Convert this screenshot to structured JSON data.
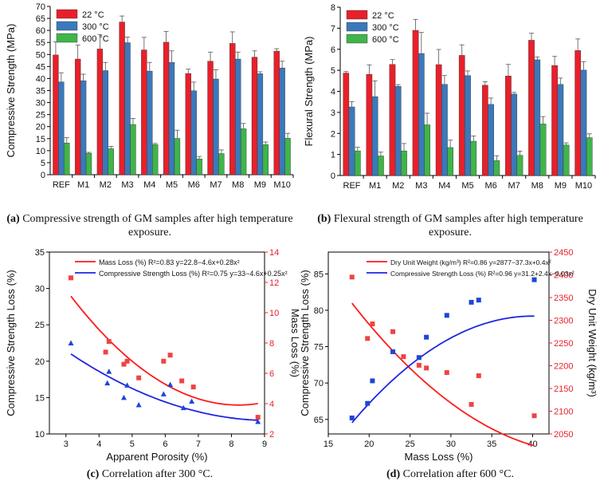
{
  "colors": {
    "red": "#e8202a",
    "blue": "#3a79bb",
    "green": "#3fb54a",
    "line_red": "#ff1a1a",
    "line_blue": "#1f25e0",
    "scatter_red": "#ee4444",
    "scatter_blue": "#1f45d8"
  },
  "captions": {
    "a_tag": "(a)",
    "a_text": " Compressive strength of GM samples after high temperature exposure.",
    "b_tag": "(b)",
    "b_text": " Flexural strength of GM samples after high temperature exposure.",
    "c_tag": "(c)",
    "c_text": " Correlation after 300 °C.",
    "d_tag": "(d)",
    "d_text": " Correlation after 600 °C."
  },
  "chart_data": [
    {
      "id": "a",
      "type": "bar",
      "categories": [
        "REF",
        "M1",
        "M2",
        "M3",
        "M4",
        "M5",
        "M6",
        "M7",
        "M8",
        "M9",
        "M10"
      ],
      "series": [
        {
          "name": "22 °C",
          "values": [
            49.8,
            48.1,
            52.3,
            63.5,
            51.9,
            55.1,
            42.1,
            47.2,
            54.6,
            48.9,
            51.4
          ],
          "errors": [
            5.5,
            5.8,
            6.0,
            2.5,
            5.2,
            4.5,
            1.8,
            3.8,
            4.8,
            2.6,
            1.0
          ]
        },
        {
          "name": "300 °C",
          "values": [
            38.6,
            39.1,
            43.3,
            54.9,
            43.1,
            46.7,
            34.9,
            39.8,
            48.1,
            42.0,
            44.4
          ],
          "errors": [
            3.8,
            2.7,
            3.4,
            2.3,
            3.6,
            4.8,
            3.6,
            3.8,
            2.9,
            0.8,
            2.8
          ]
        },
        {
          "name": "600 °C",
          "values": [
            13.2,
            8.9,
            10.8,
            20.9,
            12.5,
            15.1,
            6.6,
            8.8,
            19.1,
            12.5,
            15.2
          ],
          "errors": [
            2.2,
            0.4,
            1.0,
            2.5,
            0.5,
            3.4,
            1.0,
            1.5,
            2.2,
            1.1,
            2.0
          ]
        }
      ],
      "title": "",
      "xlabel": "",
      "ylabel": "Compressive Strength (MPa)",
      "ylim": [
        0,
        70
      ],
      "yticks": [
        0,
        5,
        10,
        15,
        20,
        25,
        30,
        35,
        40,
        45,
        50,
        55,
        60,
        65,
        70
      ],
      "legend": "top-left"
    },
    {
      "id": "b",
      "type": "bar",
      "categories": [
        "REF",
        "M1",
        "M2",
        "M3",
        "M4",
        "M5",
        "M6",
        "M7",
        "M8",
        "M9",
        "M10"
      ],
      "series": [
        {
          "name": "22 °C",
          "values": [
            4.87,
            4.81,
            5.28,
            6.9,
            5.27,
            5.71,
            4.29,
            4.73,
            6.43,
            5.23,
            5.94
          ],
          "errors": [
            0.07,
            0.45,
            0.23,
            0.52,
            0.72,
            0.5,
            0.17,
            0.55,
            0.33,
            0.43,
            0.55
          ]
        },
        {
          "name": "300 °C",
          "values": [
            3.26,
            3.75,
            4.24,
            5.8,
            4.33,
            4.75,
            3.38,
            3.87,
            5.5,
            4.33,
            5.01
          ],
          "errors": [
            0.25,
            0.75,
            0.08,
            1.0,
            0.42,
            0.22,
            0.3,
            0.08,
            0.13,
            0.3,
            0.4
          ]
        },
        {
          "name": "600 °C",
          "values": [
            1.17,
            0.93,
            1.17,
            2.41,
            1.33,
            1.63,
            0.71,
            0.96,
            2.45,
            1.45,
            1.8
          ],
          "errors": [
            0.17,
            0.18,
            0.35,
            0.55,
            0.35,
            0.25,
            0.23,
            0.2,
            0.35,
            0.1,
            0.18
          ]
        }
      ],
      "title": "",
      "xlabel": "",
      "ylabel": "Flexural Strength (MPa)",
      "ylim": [
        0,
        8
      ],
      "yticks": [
        0,
        1,
        2,
        3,
        4,
        5,
        6,
        7,
        8
      ],
      "legend": "top-left"
    },
    {
      "id": "c",
      "type": "scatter",
      "xlabel": "Apparent Porosity (%)",
      "ylabel": "Compressive Strength Loss (%)",
      "y2label": "Mass Loss (%)",
      "xlim": [
        2.5,
        9
      ],
      "ylim": [
        10,
        35
      ],
      "y2lim": [
        2,
        14
      ],
      "xticks": [
        3,
        4,
        5,
        6,
        7,
        8,
        9
      ],
      "yticks": [
        10,
        15,
        20,
        25,
        30,
        35
      ],
      "y2ticks": [
        2,
        4,
        6,
        8,
        10,
        12,
        14
      ],
      "series": [
        {
          "name": "Mass Loss (%)",
          "axis": "right",
          "marker": "square",
          "color": "red",
          "x": [
            3.15,
            4.2,
            4.3,
            4.75,
            4.85,
            5.2,
            5.95,
            6.15,
            6.5,
            6.85,
            8.8
          ],
          "y": [
            12.3,
            7.4,
            8.1,
            6.6,
            6.8,
            5.7,
            6.8,
            7.2,
            5.5,
            5.1,
            3.1
          ]
        },
        {
          "name": "Compressive Strength Loss (%)",
          "axis": "left",
          "marker": "triangle",
          "color": "blue",
          "x": [
            3.15,
            4.25,
            4.3,
            4.75,
            4.85,
            5.2,
            5.95,
            6.15,
            6.55,
            6.8,
            8.8
          ],
          "y": [
            22.5,
            17.0,
            18.6,
            15.0,
            16.7,
            14.0,
            15.5,
            16.8,
            13.6,
            14.5,
            11.7
          ]
        }
      ],
      "fits": [
        {
          "label": "Mass Loss (%) R²=0.83 y=22.8−4.6x+0.28x²",
          "axis": "right",
          "color": "red",
          "c0": 22.8,
          "c1": -4.6,
          "c2": 0.28,
          "xrange": [
            3.15,
            8.8
          ]
        },
        {
          "label": "Compressive Strength Loss (%) R²=0.75 y=33−4.6x+0.25x²",
          "axis": "left",
          "color": "blue",
          "c0": 33,
          "c1": -4.6,
          "c2": 0.25,
          "xrange": [
            3.15,
            8.8
          ]
        }
      ],
      "legend": "top-right"
    },
    {
      "id": "d",
      "type": "scatter",
      "xlabel": "Mass Loss (%)",
      "ylabel": "Compressive Strength Loss (%)",
      "y2label": "Dry Unit Weight (kg/m³)",
      "xlim": [
        15,
        42
      ],
      "ylim": [
        63,
        88
      ],
      "y2lim": [
        2050,
        2450
      ],
      "xticks": [
        15,
        20,
        25,
        30,
        35,
        40
      ],
      "yticks": [
        65,
        70,
        75,
        80,
        85
      ],
      "y2ticks": [
        2050,
        2100,
        2150,
        2200,
        2250,
        2300,
        2350,
        2400,
        2450
      ],
      "series": [
        {
          "name": "Dry Unit Weight",
          "axis": "right",
          "marker": "square",
          "color": "red",
          "x": [
            17.9,
            19.8,
            20.4,
            22.9,
            24.2,
            26.1,
            27.0,
            29.5,
            32.5,
            33.4,
            40.2
          ],
          "y": [
            2395,
            2260,
            2292,
            2275,
            2220,
            2201,
            2195,
            2185,
            2115,
            2178,
            2090
          ]
        },
        {
          "name": "Compressive Strength Loss",
          "axis": "left",
          "marker": "square",
          "color": "blue",
          "x": [
            17.9,
            19.8,
            20.4,
            22.9,
            26.1,
            27.0,
            29.5,
            32.5,
            33.4,
            40.2
          ],
          "y": [
            65.2,
            67.2,
            70.3,
            74.3,
            73.5,
            76.3,
            79.3,
            81.1,
            81.4,
            84.2
          ]
        }
      ],
      "fits": [
        {
          "label": "Dry Unit Weight  (kg/m³) R²=0.86 y=2877−37.3x+0.4x²",
          "axis": "right",
          "color": "red",
          "c0": 2877,
          "c1": -37.3,
          "c2": 0.4,
          "xrange": [
            17.9,
            40.2
          ]
        },
        {
          "label": "Compressive Strength Loss (%) R²=0.96 y=31.2+2.4x−0.03x²",
          "axis": "left",
          "color": "blue",
          "c0": 31.2,
          "c1": 2.4,
          "c2": -0.03,
          "xrange": [
            17.9,
            40.2
          ]
        }
      ],
      "legend": "top-left"
    }
  ]
}
